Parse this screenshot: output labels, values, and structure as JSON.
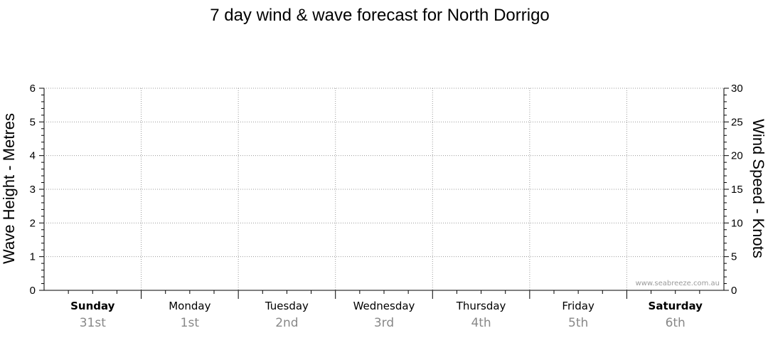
{
  "chart_data": {
    "type": "line",
    "title": "7 day wind & wave forecast for North Dorrigo",
    "y_left": {
      "label": "Wave Height - Metres",
      "min": 0,
      "max": 6,
      "ticks": [
        0,
        1,
        2,
        3,
        4,
        5,
        6
      ]
    },
    "y_right": {
      "label": "Wind Speed - Knots",
      "min": 0,
      "max": 30,
      "ticks": [
        0,
        5,
        10,
        15,
        20,
        25,
        30
      ]
    },
    "days": [
      {
        "name": "Sunday",
        "date": "31st",
        "bold": true
      },
      {
        "name": "Monday",
        "date": "1st",
        "bold": false
      },
      {
        "name": "Tuesday",
        "date": "2nd",
        "bold": false
      },
      {
        "name": "Wednesday",
        "date": "3rd",
        "bold": false
      },
      {
        "name": "Thursday",
        "date": "4th",
        "bold": false
      },
      {
        "name": "Friday",
        "date": "5th",
        "bold": false
      },
      {
        "name": "Saturday",
        "date": "6th",
        "bold": true
      }
    ],
    "series": [],
    "grid": true,
    "watermark": "www.seabreeze.com.au"
  }
}
